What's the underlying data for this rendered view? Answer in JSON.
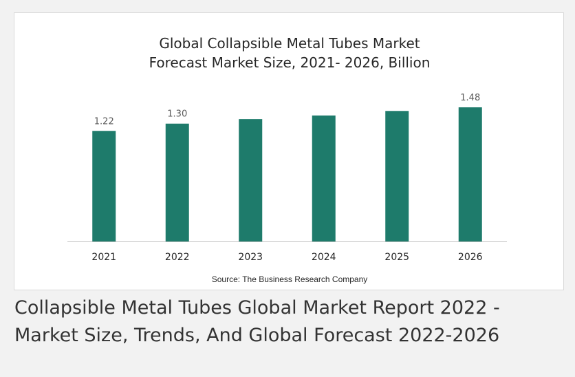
{
  "chart_data": {
    "type": "bar",
    "title": [
      "Global Collapsible Metal Tubes Market",
      "Forecast Market Size, 2021- 2026, Billion"
    ],
    "categories": [
      "2021",
      "2022",
      "2023",
      "2024",
      "2025",
      "2026"
    ],
    "values": [
      1.22,
      1.3,
      1.35,
      1.39,
      1.44,
      1.48
    ],
    "data_labels": [
      "1.22",
      "1.30",
      "",
      "",
      "",
      "1.48"
    ],
    "ylim": [
      0,
      1.6
    ],
    "grid": false,
    "legend": "none",
    "bar_color": "#1e7b6b",
    "source": "Source: The Business Research Company"
  },
  "caption": {
    "line1": "Collapsible Metal Tubes Global Market Report 2022 -",
    "line2": "Market Size, Trends, And Global Forecast 2022-2026"
  }
}
